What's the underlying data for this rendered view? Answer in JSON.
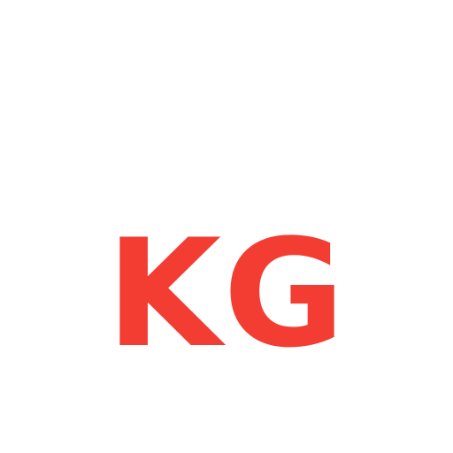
{
  "logo": {
    "text": "KG",
    "color": "#f33d33"
  },
  "background": {
    "color": "#ffffff"
  }
}
